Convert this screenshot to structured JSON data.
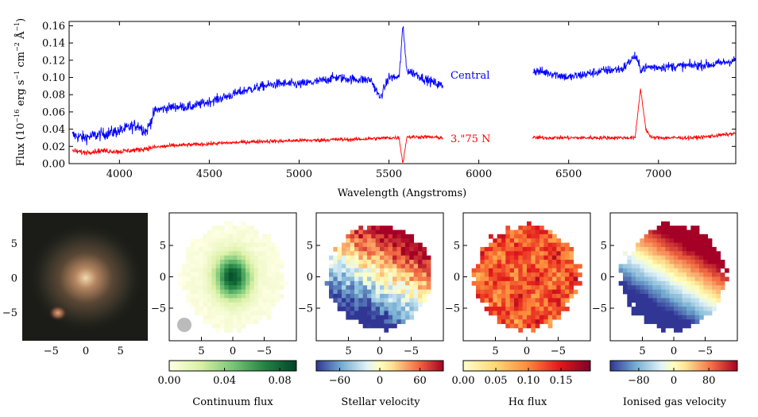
{
  "chart_data": [
    {
      "type": "line",
      "xlabel": "Wavelength (Angstroms)",
      "ylabel": "Flux (10^-16 erg s^-1 cm^-2 Å^-1)",
      "ylabel_parts": {
        "pre": "Flux (10",
        "exp1": "−16",
        "mid1": " erg s",
        "exp2": "−1",
        "mid2": " cm",
        "exp3": "−2",
        "mid3": " Å",
        "exp4": "−1",
        "post": ")"
      },
      "xlim": [
        3720,
        7430
      ],
      "ylim": [
        0.0,
        0.165
      ],
      "xticks": [
        "4000",
        "4500",
        "5000",
        "5500",
        "6000",
        "6500",
        "7000"
      ],
      "xtick_values": [
        4000,
        4500,
        5000,
        5500,
        6000,
        6500,
        7000
      ],
      "yticks": [
        "0.00",
        "0.02",
        "0.04",
        "0.06",
        "0.08",
        "0.10",
        "0.12",
        "0.14",
        "0.16"
      ],
      "ytick_values": [
        0.0,
        0.02,
        0.04,
        0.06,
        0.08,
        0.1,
        0.12,
        0.14,
        0.16
      ],
      "gap": [
        5800,
        6300
      ],
      "series": [
        {
          "name": "Central",
          "color": "#0000ff",
          "x": [
            3740,
            3800,
            3900,
            4000,
            4100,
            4150,
            4200,
            4300,
            4400,
            4500,
            4600,
            4700,
            4800,
            4900,
            5000,
            5100,
            5200,
            5300,
            5400,
            5450,
            5500,
            5557,
            5577,
            5600,
            5650,
            5700,
            5800,
            6300,
            6400,
            6500,
            6600,
            6700,
            6800,
            6870,
            6900,
            6950,
            7000,
            7100,
            7200,
            7300,
            7430
          ],
          "y": [
            0.033,
            0.03,
            0.034,
            0.038,
            0.045,
            0.037,
            0.062,
            0.066,
            0.066,
            0.072,
            0.078,
            0.085,
            0.09,
            0.093,
            0.092,
            0.095,
            0.1,
            0.098,
            0.097,
            0.076,
            0.1,
            0.1,
            0.16,
            0.108,
            0.104,
            0.098,
            0.09,
            0.108,
            0.105,
            0.1,
            0.104,
            0.108,
            0.11,
            0.125,
            0.11,
            0.112,
            0.112,
            0.113,
            0.114,
            0.115,
            0.12
          ]
        },
        {
          "name": "3.\"75 N",
          "color": "#ff0000",
          "x": [
            3740,
            3800,
            3900,
            4000,
            4100,
            4200,
            4300,
            4400,
            4500,
            4600,
            4700,
            4800,
            4900,
            5000,
            5100,
            5200,
            5300,
            5400,
            5500,
            5557,
            5577,
            5600,
            5700,
            5800,
            6300,
            6500,
            6700,
            6870,
            6900,
            6930,
            6960,
            7100,
            7200,
            7300,
            7430
          ],
          "y": [
            0.015,
            0.013,
            0.015,
            0.014,
            0.016,
            0.019,
            0.021,
            0.022,
            0.023,
            0.024,
            0.025,
            0.026,
            0.026,
            0.027,
            0.027,
            0.028,
            0.028,
            0.029,
            0.03,
            0.03,
            0.0,
            0.031,
            0.031,
            0.03,
            0.03,
            0.03,
            0.03,
            0.03,
            0.087,
            0.04,
            0.03,
            0.03,
            0.03,
            0.032,
            0.035
          ]
        }
      ],
      "annotations": [
        "Central",
        "3.\"75 N"
      ]
    },
    {
      "type": "image",
      "name": "galaxy-color-image",
      "xticks": [
        "5",
        "0",
        "−5"
      ],
      "yticks": [
        "5",
        "0",
        "−5"
      ]
    },
    {
      "type": "heatmap",
      "colorbar_label": "Continuum flux",
      "colorbar_ticks": [
        "0.00",
        "0.04",
        "0.08"
      ],
      "colorbar_tick_values": [
        0.0,
        0.04,
        0.08
      ],
      "colorbar_range": [
        0.0,
        0.092
      ],
      "colormap": "YlGn",
      "xticks": [
        "5",
        "0",
        "−5"
      ],
      "yticks": [
        "5",
        "0",
        "−5"
      ]
    },
    {
      "type": "heatmap",
      "colorbar_label": "Stellar velocity",
      "colorbar_ticks": [
        "−60",
        "0",
        "60"
      ],
      "colorbar_tick_values": [
        -60,
        0,
        60
      ],
      "colorbar_range": [
        -95,
        95
      ],
      "colormap": "RdYlBu_r",
      "xticks": [
        "5",
        "0",
        "−5"
      ]
    },
    {
      "type": "heatmap",
      "colorbar_label": "Hα flux",
      "colorbar_ticks": [
        "0.00",
        "0.05",
        "0.10",
        "0.15"
      ],
      "colorbar_tick_values": [
        0.0,
        0.05,
        0.1,
        0.15
      ],
      "colorbar_range": [
        0.0,
        0.195
      ],
      "colormap": "YlOrRd",
      "xticks": [
        "5",
        "0",
        "−5"
      ]
    },
    {
      "type": "heatmap",
      "colorbar_label": "Ionised gas velocity",
      "colorbar_ticks": [
        "−80",
        "0",
        "80"
      ],
      "colorbar_tick_values": [
        -80,
        0,
        80
      ],
      "colorbar_range": [
        -145,
        145
      ],
      "colormap": "RdYlBu_r",
      "xticks": [
        "5",
        "0",
        "−5"
      ],
      "yticks": [
        "5",
        "0",
        "−5"
      ]
    }
  ]
}
